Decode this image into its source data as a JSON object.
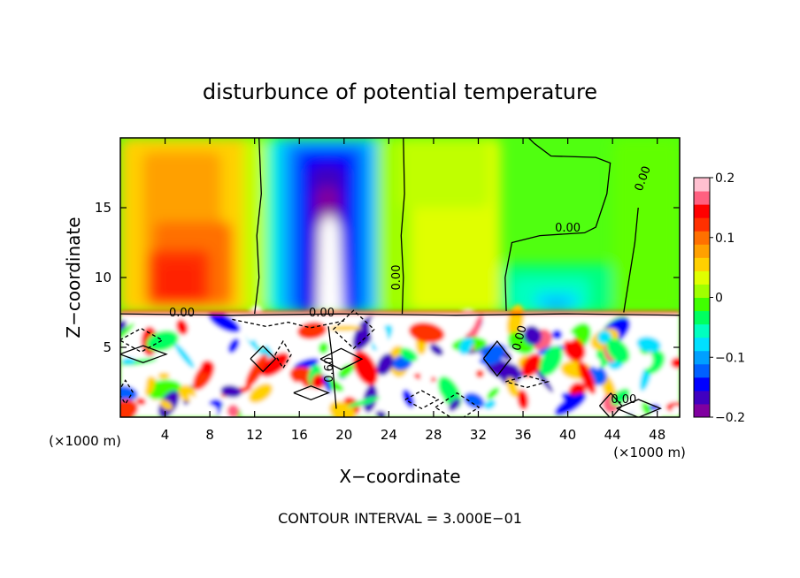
{
  "chart_data": {
    "type": "heatmap",
    "title": "disturbunce of potential temperature",
    "xlabel": "X−coordinate",
    "ylabel": "Z−coordinate",
    "x_unit_left": "(×1000 m)",
    "x_unit_right": "(×1000 m)",
    "footer": "CONTOUR INTERVAL = 3.000E−01",
    "xlim": [
      0,
      50
    ],
    "ylim": [
      0,
      20
    ],
    "x_ticks": [
      4,
      8,
      12,
      16,
      20,
      24,
      28,
      32,
      36,
      40,
      44,
      48
    ],
    "y_ticks": [
      5,
      10,
      15
    ],
    "colorbar": {
      "min": -0.2,
      "max": 0.2,
      "tick_values": [
        0.2,
        0.1,
        0,
        -0.1,
        -0.2
      ],
      "tick_labels": [
        "0.2",
        "0.1",
        "0",
        "−0.1",
        "−0.2"
      ],
      "colors": [
        "#8000a0",
        "#4000c0",
        "#0000ff",
        "#0060ff",
        "#00a0ff",
        "#00e0ff",
        "#00ffc0",
        "#00ff60",
        "#40ff00",
        "#a0ff00",
        "#e0ff00",
        "#ffd000",
        "#ffa000",
        "#ff7000",
        "#ff3000",
        "#ff0000",
        "#ff6080",
        "#ffc0d0"
      ]
    },
    "contour_labels": [
      {
        "text": "0.00",
        "x": 18.0,
        "y": 7.2,
        "angle": 0
      },
      {
        "text": "0.00",
        "x": 5.5,
        "y": 7.2,
        "angle": 0
      },
      {
        "text": "0.00",
        "x": 25.0,
        "y": 10.0,
        "angle": -90
      },
      {
        "text": "0.00",
        "x": 40.0,
        "y": 13.3,
        "angle": 0
      },
      {
        "text": "0.00",
        "x": 47.0,
        "y": 17.0,
        "angle": -70
      },
      {
        "text": "0.60",
        "x": 19.0,
        "y": 3.4,
        "angle": -90
      },
      {
        "text": "0.00",
        "x": 36.0,
        "y": 5.6,
        "angle": -75
      },
      {
        "text": "0.00",
        "x": 45.0,
        "y": 1.0,
        "angle": 0
      }
    ]
  }
}
